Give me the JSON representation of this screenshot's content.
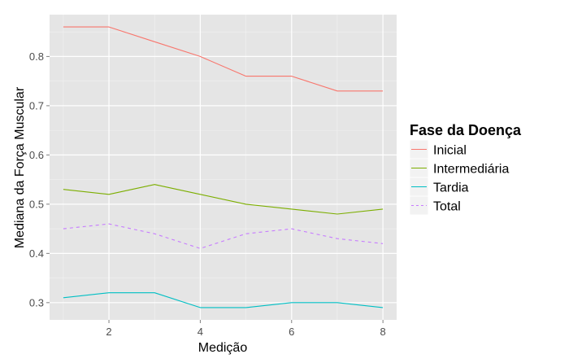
{
  "chart_data": {
    "type": "line",
    "xlabel": "Medição",
    "ylabel": "Mediana da Força Muscular",
    "xlim": [
      0.7,
      8.3
    ],
    "ylim": [
      0.265,
      0.885
    ],
    "x": [
      1,
      2,
      3,
      4,
      5,
      6,
      7,
      8
    ],
    "x_ticks": [
      2,
      4,
      6,
      8
    ],
    "x_tick_labels": [
      "2",
      "4",
      "6",
      "8"
    ],
    "y_ticks": [
      0.3,
      0.4,
      0.5,
      0.6,
      0.7,
      0.8
    ],
    "y_tick_labels": [
      "0.3",
      "0.4",
      "0.5",
      "0.6",
      "0.7",
      "0.8"
    ],
    "grid": true,
    "legend": {
      "title": "Fase da Doença",
      "placement": "right"
    },
    "series": [
      {
        "name": "Inicial",
        "values": [
          0.86,
          0.86,
          0.83,
          0.8,
          0.76,
          0.76,
          0.73,
          0.73
        ],
        "color": "#F8766D",
        "dash": "solid"
      },
      {
        "name": "Intermediária",
        "values": [
          0.53,
          0.52,
          0.54,
          0.52,
          0.5,
          0.49,
          0.48,
          0.49
        ],
        "color": "#7CAE00",
        "dash": "solid"
      },
      {
        "name": "Tardia",
        "values": [
          0.31,
          0.32,
          0.32,
          0.29,
          0.29,
          0.3,
          0.3,
          0.29
        ],
        "color": "#00BFC4",
        "dash": "solid"
      },
      {
        "name": "Total",
        "values": [
          0.45,
          0.46,
          0.44,
          0.41,
          0.44,
          0.45,
          0.43,
          0.42
        ],
        "color": "#C77CFF",
        "dash": "dashed"
      }
    ],
    "colors": {
      "panel_background": "#E5E5E5",
      "grid_major": "#FFFFFF",
      "grid_minor": "#F2F2F2",
      "legend_key_background": "#F2F2F2"
    }
  }
}
